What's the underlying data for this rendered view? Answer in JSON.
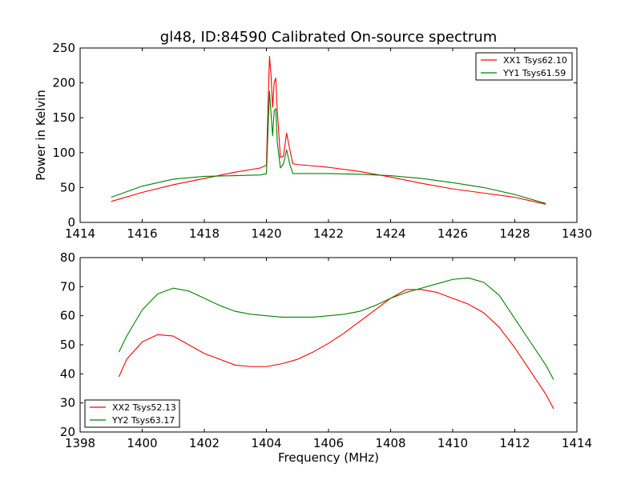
{
  "chart_data": [
    {
      "type": "line",
      "title": "gl48, ID:84590 Calibrated On-source spectrum",
      "xlabel": "",
      "ylabel": "Power in Kelvin",
      "xlim": [
        1414,
        1430
      ],
      "ylim": [
        0,
        250
      ],
      "xticks": [
        "1414",
        "1416",
        "1418",
        "1420",
        "1422",
        "1424",
        "1426",
        "1428",
        "1430"
      ],
      "yticks": [
        "0",
        "50",
        "100",
        "150",
        "200",
        "250"
      ],
      "grid": false,
      "legend_position": "top-right",
      "series": [
        {
          "name": "XX1 Tsys62.10",
          "color": "#ff0000",
          "x": [
            1415.0,
            1416.0,
            1417.0,
            1418.0,
            1419.0,
            1419.8,
            1420.0,
            1420.05,
            1420.1,
            1420.15,
            1420.2,
            1420.25,
            1420.3,
            1420.35,
            1420.45,
            1420.55,
            1420.65,
            1420.75,
            1420.85,
            1421.0,
            1422.0,
            1423.0,
            1424.0,
            1425.0,
            1426.0,
            1427.0,
            1428.0,
            1429.0
          ],
          "y": [
            30,
            43,
            54,
            63,
            72,
            78,
            82,
            165,
            238,
            210,
            165,
            200,
            207,
            160,
            93,
            95,
            128,
            105,
            84,
            83,
            79,
            73,
            65,
            56,
            48,
            42,
            36,
            26
          ]
        },
        {
          "name": "YY1 Tsys61.59",
          "color": "#008000",
          "x": [
            1415.0,
            1416.0,
            1417.0,
            1418.0,
            1419.0,
            1419.8,
            1420.0,
            1420.05,
            1420.1,
            1420.15,
            1420.2,
            1420.25,
            1420.3,
            1420.35,
            1420.45,
            1420.55,
            1420.65,
            1420.75,
            1420.85,
            1421.0,
            1422.0,
            1423.0,
            1424.0,
            1425.0,
            1426.0,
            1427.0,
            1428.0,
            1429.0
          ],
          "y": [
            36,
            52,
            62,
            66,
            67,
            68,
            70,
            130,
            188,
            155,
            124,
            160,
            163,
            115,
            78,
            84,
            104,
            84,
            70,
            70,
            70,
            69,
            67,
            63,
            57,
            50,
            40,
            27
          ]
        }
      ]
    },
    {
      "type": "line",
      "title": "",
      "xlabel": "Frequency (MHz)",
      "ylabel": "",
      "xlim": [
        1398,
        1414
      ],
      "ylim": [
        20,
        80
      ],
      "xticks": [
        "1398",
        "1400",
        "1402",
        "1404",
        "1406",
        "1408",
        "1410",
        "1412",
        "1414"
      ],
      "yticks": [
        "20",
        "30",
        "40",
        "50",
        "60",
        "70",
        "80"
      ],
      "grid": false,
      "legend_position": "bottom-left",
      "series": [
        {
          "name": "XX2 Tsys52.13",
          "color": "#ff0000",
          "x": [
            1399.25,
            1399.5,
            1400.0,
            1400.5,
            1401.0,
            1401.5,
            1402.0,
            1402.5,
            1403.0,
            1403.5,
            1404.0,
            1404.5,
            1405.0,
            1405.5,
            1406.0,
            1406.5,
            1407.0,
            1407.5,
            1408.0,
            1408.5,
            1409.0,
            1409.5,
            1410.0,
            1410.5,
            1411.0,
            1411.5,
            1412.0,
            1412.5,
            1413.0,
            1413.25
          ],
          "y": [
            39,
            45,
            51,
            53.5,
            53,
            50,
            47,
            45,
            43,
            42.5,
            42.5,
            43.5,
            45,
            47.5,
            50.5,
            54,
            58,
            62,
            66,
            69,
            69,
            68,
            66,
            64,
            61,
            56,
            49,
            41,
            33,
            28
          ]
        },
        {
          "name": "YY2 Tsys63.17",
          "color": "#008000",
          "x": [
            1399.25,
            1399.5,
            1400.0,
            1400.5,
            1401.0,
            1401.5,
            1402.0,
            1402.5,
            1403.0,
            1403.5,
            1404.0,
            1404.5,
            1405.0,
            1405.5,
            1406.0,
            1406.5,
            1407.0,
            1407.5,
            1408.0,
            1408.5,
            1409.0,
            1409.5,
            1410.0,
            1410.5,
            1411.0,
            1411.5,
            1412.0,
            1412.5,
            1413.0,
            1413.25
          ],
          "y": [
            47.5,
            53,
            62,
            67.5,
            69.5,
            68.5,
            66,
            63.5,
            61.5,
            60.5,
            60,
            59.5,
            59.5,
            59.5,
            60,
            60.5,
            61.5,
            63.5,
            66,
            68,
            69.5,
            71,
            72.5,
            73,
            71.5,
            67,
            59,
            51,
            43,
            38
          ]
        }
      ]
    }
  ]
}
